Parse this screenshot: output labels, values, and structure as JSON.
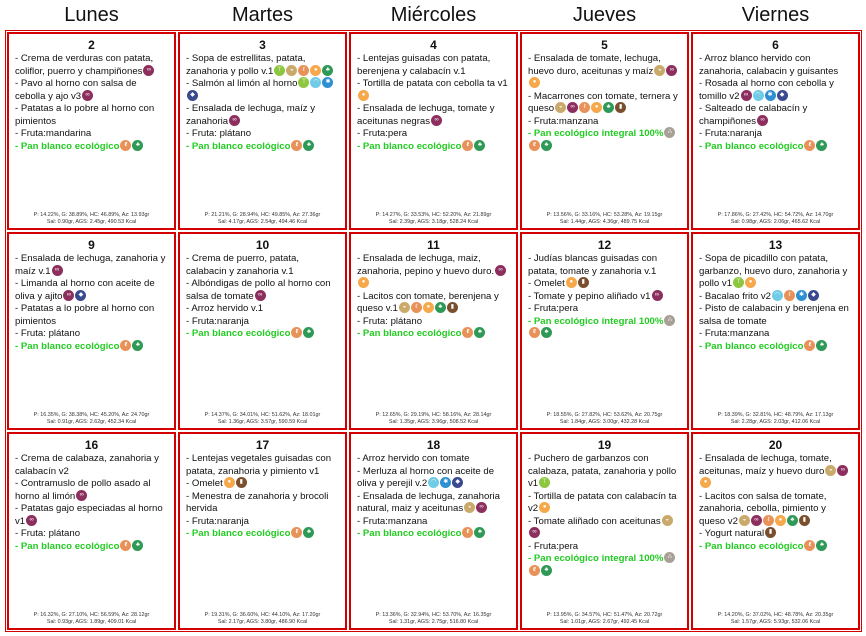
{
  "headers": [
    "Lunes",
    "Martes",
    "Miércoles",
    "Jueves",
    "Viernes"
  ],
  "icon_colors": {
    "celery": "#8dc63f",
    "mustard": "#c9aa6b",
    "gluten": "#e8925a",
    "egg": "#f6a84a",
    "soy": "#2f9a58",
    "mollusc": "#6fcbe6",
    "crustacean": "#2e8fd2",
    "fish": "#3a4a8e",
    "sulphite": "#8c2e5e",
    "milk": "#7a4f2e",
    "sesame": "#a8a096"
  },
  "days": [
    {
      "number": "2",
      "items": [
        {
          "text": "- Crema de verduras con patata, coliflor, puerro y champiñones",
          "icons": [
            "sulphite"
          ]
        },
        {
          "text": "- Pavo al horno con salsa de cebolla y ajo v3",
          "icons": [
            "sulphite"
          ]
        },
        {
          "text": "- Patatas a lo pobre al horno con pimientos",
          "icons": []
        },
        {
          "text": "- Fruta:mandarina",
          "icons": []
        },
        {
          "text": "- Pan blanco ecológico",
          "icons": [
            "gluten",
            "soy"
          ],
          "green": true
        }
      ],
      "nutrition": [
        "P: 14.22%, G: 38.89%, HC: 46.89%, Az: 13.93gr",
        "Sal: 0.90gr, AGS: 2.45gr, 490.53 Kcal"
      ]
    },
    {
      "number": "3",
      "items": [
        {
          "text": "- Sopa de estrellitas, patata, zanahoria y pollo v.1",
          "icons": [
            "celery",
            "mustard",
            "gluten",
            "egg",
            "soy"
          ]
        },
        {
          "text": "- Salmón al limón al horno",
          "icons": [
            "celery",
            "mollusc",
            "crustacean",
            "fish"
          ]
        },
        {
          "text": "- Ensalada de lechuga, maíz y zanahoria",
          "icons": [
            "sulphite"
          ]
        },
        {
          "text": "- Fruta: plátano",
          "icons": []
        },
        {
          "text": "- Pan blanco ecológico",
          "icons": [
            "gluten",
            "soy"
          ],
          "green": true
        }
      ],
      "nutrition": [
        "P: 21.21%, G: 28.94%, HC: 49.85%, Az: 27.36gr",
        "Sal: 4.17gr, AGS: 2.54gr, 494.46 Kcal"
      ]
    },
    {
      "number": "4",
      "items": [
        {
          "text": "- Lentejas guisadas con patata, berenjena y calabacín v.1",
          "icons": []
        },
        {
          "text": "- Tortilla de patata con cebolla ta v1",
          "icons": [
            "egg"
          ]
        },
        {
          "text": "- Ensalada de lechuga, tomate y aceitunas negras",
          "icons": [
            "sulphite"
          ]
        },
        {
          "text": "- Fruta:pera",
          "icons": []
        },
        {
          "text": "- Pan blanco ecológico",
          "icons": [
            "gluten",
            "soy"
          ],
          "green": true
        }
      ],
      "nutrition": [
        "P: 14.27%, G: 33.53%, HC: 52.20%, Az: 21.89gr",
        "Sal: 2.39gr, AGS: 3.18gr, 528.24 Kcal"
      ]
    },
    {
      "number": "5",
      "items": [
        {
          "text": "- Ensalada de tomate, lechuga, huevo duro, aceitunas y maíz",
          "icons": [
            "mustard",
            "sulphite",
            "egg"
          ]
        },
        {
          "text": "- Macarrones con tomate, ternera y queso",
          "icons": [
            "mustard",
            "sulphite",
            "gluten",
            "egg",
            "soy",
            "milk"
          ]
        },
        {
          "text": "- Fruta:manzana",
          "icons": []
        },
        {
          "text": "- Pan ecológico integral 100%",
          "icons": [
            "sesame",
            "gluten",
            "soy"
          ],
          "green": true
        }
      ],
      "nutrition": [
        "P: 13.56%, G: 33.16%, HC: 53.28%, Az: 19.15gr",
        "Sal: 1.44gr, AGS: 4.36gr, 489.75 Kcal"
      ]
    },
    {
      "number": "6",
      "items": [
        {
          "text": "- Arroz blanco hervido con zanahoria, calabacin y guisantes",
          "icons": []
        },
        {
          "text": "- Rosada al horno con cebolla y tomillo v2",
          "icons": [
            "sulphite",
            "mollusc",
            "crustacean",
            "fish"
          ]
        },
        {
          "text": "- Salteado de calabacín y champiñones",
          "icons": [
            "sulphite"
          ]
        },
        {
          "text": "- Fruta:naranja",
          "icons": []
        },
        {
          "text": "- Pan blanco ecológico",
          "icons": [
            "gluten",
            "soy"
          ],
          "green": true
        }
      ],
      "nutrition": [
        "P: 17.86%, G: 27.42%, HC: 54.72%, Az: 14.70gr",
        "Sal: 0.98gr, AGS: 2.06gr, 465.62 Kcal"
      ]
    },
    {
      "number": "9",
      "items": [
        {
          "text": "- Ensalada de lechuga, zanahoria y maíz v.1",
          "icons": [
            "sulphite"
          ]
        },
        {
          "text": "- Limanda al horno con aceite de oliva y ajito",
          "icons": [
            "sulphite",
            "fish"
          ]
        },
        {
          "text": "- Patatas a lo pobre al horno con pimientos",
          "icons": []
        },
        {
          "text": "- Fruta: plátano",
          "icons": []
        },
        {
          "text": "- Pan blanco ecológico",
          "icons": [
            "gluten",
            "soy"
          ],
          "green": true
        }
      ],
      "nutrition": [
        "P: 16.35%, G: 38.38%, HC: 45.20%, Az: 24.70gr",
        "Sal: 0.91gr, AGS: 2.62gr, 452.34 Kcal"
      ]
    },
    {
      "number": "10",
      "items": [
        {
          "text": "- Crema de puerro, patata, calabacin y zanahoria v.1",
          "icons": []
        },
        {
          "text": "- Albóndigas de pollo al horno con salsa de tomate",
          "icons": [
            "sulphite"
          ]
        },
        {
          "text": "- Arroz hervido v.1",
          "icons": []
        },
        {
          "text": "- Fruta:naranja",
          "icons": []
        },
        {
          "text": "- Pan blanco ecológico",
          "icons": [
            "gluten",
            "soy"
          ],
          "green": true
        }
      ],
      "nutrition": [
        "P: 14.37%, G: 34.01%, HC: 51.62%, Az: 18.01gr",
        "Sal: 1.36gr, AGS: 3.57gr, 590.59 Kcal"
      ]
    },
    {
      "number": "11",
      "items": [
        {
          "text": "- Ensalada de lechuga, maiz, zanahoria, pepino y huevo duro.",
          "icons": [
            "sulphite",
            "egg"
          ]
        },
        {
          "text": "- Lacitos con tomate, berenjena y queso v.1",
          "icons": [
            "mustard",
            "gluten",
            "egg",
            "soy",
            "milk"
          ]
        },
        {
          "text": "- Fruta: plátano",
          "icons": []
        },
        {
          "text": "- Pan blanco ecológico",
          "icons": [
            "gluten",
            "soy"
          ],
          "green": true
        }
      ],
      "nutrition": [
        "P: 12.65%, G: 29.19%, HC: 58.16%, Az: 28.14gr",
        "Sal: 1.35gr, AGS: 3.96gr, 508.52 Kcal"
      ]
    },
    {
      "number": "12",
      "items": [
        {
          "text": "- Judías blancas guisadas con patata, tomate y zanahoria v.1",
          "icons": []
        },
        {
          "text": "- Omelet",
          "icons": [
            "egg",
            "milk"
          ]
        },
        {
          "text": "- Tomate y pepino aliñado v1",
          "icons": [
            "sulphite"
          ]
        },
        {
          "text": "- Fruta:pera",
          "icons": []
        },
        {
          "text": "- Pan ecológico integral 100%",
          "icons": [
            "sesame",
            "gluten",
            "soy"
          ],
          "green": true
        }
      ],
      "nutrition": [
        "P: 18.55%, G: 27.82%, HC: 53.62%, Az: 20.75gr",
        "Sal: 1.84gr, AGS: 3.00gr, 432.28 Kcal"
      ]
    },
    {
      "number": "13",
      "items": [
        {
          "text": "- Sopa de picadillo con patata, garbanzo, huevo duro, zanahoria y pollo v1",
          "icons": [
            "celery",
            "egg"
          ]
        },
        {
          "text": "- Bacalao frito v2",
          "icons": [
            "mollusc",
            "gluten",
            "crustacean",
            "fish"
          ]
        },
        {
          "text": "- Pisto de calabacin y berenjena en salsa de tomate",
          "icons": []
        },
        {
          "text": "- Fruta:manzana",
          "icons": []
        },
        {
          "text": "- Pan blanco ecológico",
          "icons": [
            "gluten",
            "soy"
          ],
          "green": true
        }
      ],
      "nutrition": [
        "P: 18.39%, G: 32.81%, HC: 48.79%, Az: 17.13gr",
        "Sal: 2.28gr, AGS: 2.03gr, 412.06 Kcal"
      ]
    },
    {
      "number": "16",
      "items": [
        {
          "text": "- Crema de calabaza, zanahoria y calabacín v2",
          "icons": []
        },
        {
          "text": "- Contramuslo de pollo asado al horno al limón",
          "icons": [
            "sulphite"
          ]
        },
        {
          "text": "- Patatas gajo especiadas al horno v1",
          "icons": [
            "sulphite"
          ]
        },
        {
          "text": "- Fruta: plátano",
          "icons": []
        },
        {
          "text": "- Pan blanco ecológico",
          "icons": [
            "gluten",
            "soy"
          ],
          "green": true
        }
      ],
      "nutrition": [
        "P: 16.32%, G: 27.10%, HC: 56.59%, Az: 28.12gr",
        "Sal: 0.93gr, AGS: 1.89gr, 409.01 Kcal"
      ]
    },
    {
      "number": "17",
      "items": [
        {
          "text": "- Lentejas vegetales guisadas con patata, zanahoria y pimiento v1",
          "icons": []
        },
        {
          "text": "- Omelet",
          "icons": [
            "egg",
            "milk"
          ]
        },
        {
          "text": "- Menestra de zanahoria y brocoli hervida",
          "icons": []
        },
        {
          "text": "- Fruta:naranja",
          "icons": []
        },
        {
          "text": "- Pan blanco ecológico",
          "icons": [
            "gluten",
            "soy"
          ],
          "green": true
        }
      ],
      "nutrition": [
        "P: 19.31%, G: 36.60%, HC: 44.10%, Az: 17.20gr",
        "Sal: 2.17gr, AGS: 3.80gr, 486.90 Kcal"
      ]
    },
    {
      "number": "18",
      "items": [
        {
          "text": "- Arroz hervido con tomate",
          "icons": []
        },
        {
          "text": "- Merluza al horno con aceite de oliva y perejil v.2",
          "icons": [
            "mollusc",
            "crustacean",
            "fish"
          ]
        },
        {
          "text": "- Ensalada de lechuga, zanahoria natural, maiz y aceitunas",
          "icons": [
            "mustard",
            "sulphite"
          ]
        },
        {
          "text": "- Fruta:manzana",
          "icons": []
        },
        {
          "text": "- Pan blanco ecológico",
          "icons": [
            "gluten",
            "soy"
          ],
          "green": true
        }
      ],
      "nutrition": [
        "P: 13.36%, G: 32.94%, HC: 53.70%, Az: 16.35gr",
        "Sal: 1.31gr, AGS: 2.75gr, 516.80 Kcal"
      ]
    },
    {
      "number": "19",
      "items": [
        {
          "text": "- Puchero de garbanzos con calabaza, patata, zanahoria y pollo v1",
          "icons": [
            "celery"
          ]
        },
        {
          "text": "- Tortilla de patata con calabacín ta v2",
          "icons": [
            "egg"
          ]
        },
        {
          "text": "- Tomate aliñado con aceitunas",
          "icons": [
            "mustard",
            "sulphite"
          ]
        },
        {
          "text": "- Fruta:pera",
          "icons": []
        },
        {
          "text": "- Pan ecológico integral 100%",
          "icons": [
            "sesame",
            "gluten",
            "soy"
          ],
          "green": true
        }
      ],
      "nutrition": [
        "P: 13.95%, G: 34.57%, HC: 51.47%, Az: 20.72gr",
        "Sal: 1.01gr, AGS: 2.67gr, 492.45 Kcal"
      ]
    },
    {
      "number": "20",
      "items": [
        {
          "text": "- Ensalada de lechuga, tomate, aceitunas, maíz y huevo duro",
          "icons": [
            "mustard",
            "sulphite",
            "egg"
          ]
        },
        {
          "text": "- Lacitos con salsa de tomate, zanahoria, cebolla, pimiento y queso v2",
          "icons": [
            "mustard",
            "sulphite",
            "gluten",
            "egg",
            "soy",
            "milk"
          ]
        },
        {
          "text": "- Yogurt natural",
          "icons": [
            "milk"
          ]
        },
        {
          "text": "- Pan blanco ecológico",
          "icons": [
            "gluten",
            "soy"
          ],
          "green": true
        }
      ],
      "nutrition": [
        "P: 14.20%, G: 37.02%, HC: 48.78%, Az: 20.35gr",
        "Sal: 1.57gr, AGS: 5.93gr, 532.06 Kcal"
      ]
    }
  ]
}
